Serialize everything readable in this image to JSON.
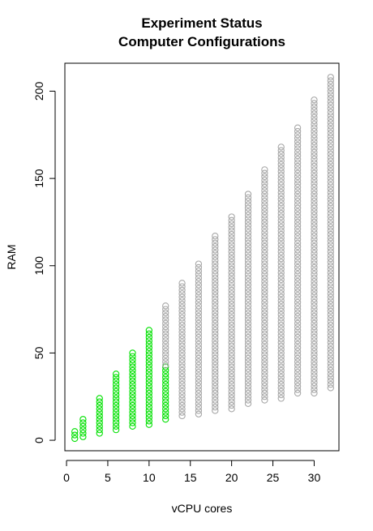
{
  "chart_data": {
    "type": "scatter",
    "title": "Experiment Status",
    "subtitle": "Computer Configurations",
    "xlabel": "vCPU cores",
    "ylabel": "RAM",
    "xlim": [
      -0.2,
      33.0
    ],
    "ylim": [
      -6,
      216
    ],
    "xticks": [
      0,
      5,
      10,
      15,
      20,
      25,
      30
    ],
    "yticks": [
      0,
      50,
      100,
      150,
      200
    ],
    "grid": false,
    "legend": "none",
    "point_step": 2,
    "colors": {
      "done": "#00e000",
      "pending": "#a8a8a8",
      "axis": "#000000"
    },
    "series": [
      {
        "status": "done",
        "columns": [
          {
            "x": 1,
            "y_min": 1,
            "y_max": 6
          },
          {
            "x": 2,
            "y_min": 2,
            "y_max": 12
          },
          {
            "x": 4,
            "y_min": 4,
            "y_max": 24
          },
          {
            "x": 6,
            "y_min": 6,
            "y_max": 39
          },
          {
            "x": 8,
            "y_min": 8,
            "y_max": 51
          },
          {
            "x": 10,
            "y_min": 9,
            "y_max": 63
          },
          {
            "x": 12,
            "y_min": 12,
            "y_max": 43
          }
        ]
      },
      {
        "status": "pending",
        "columns": [
          {
            "x": 12,
            "y_min": 43,
            "y_max": 78
          },
          {
            "x": 14,
            "y_min": 14,
            "y_max": 90
          },
          {
            "x": 16,
            "y_min": 15,
            "y_max": 102
          },
          {
            "x": 18,
            "y_min": 17,
            "y_max": 117
          },
          {
            "x": 20,
            "y_min": 18,
            "y_max": 129
          },
          {
            "x": 22,
            "y_min": 21,
            "y_max": 141
          },
          {
            "x": 24,
            "y_min": 23,
            "y_max": 156
          },
          {
            "x": 26,
            "y_min": 24,
            "y_max": 168
          },
          {
            "x": 28,
            "y_min": 27,
            "y_max": 180
          },
          {
            "x": 30,
            "y_min": 27,
            "y_max": 195
          },
          {
            "x": 32,
            "y_min": 30,
            "y_max": 208
          }
        ]
      }
    ]
  }
}
